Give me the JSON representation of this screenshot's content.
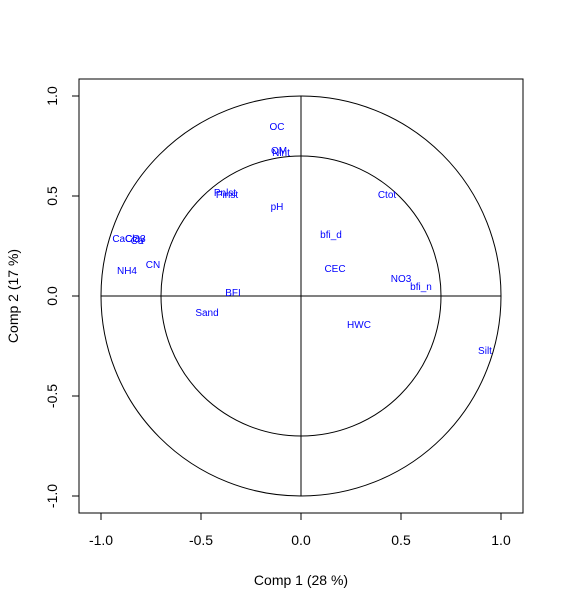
{
  "chart_data": {
    "type": "scatter",
    "title": "",
    "xlabel": "Comp 1 (28 %)",
    "ylabel": "Comp 2 (17 %)",
    "xlim": [
      -1.1,
      1.1
    ],
    "ylim": [
      -1.08,
      1.08
    ],
    "xticks": [
      -1.0,
      -0.5,
      0.0,
      0.5,
      1.0
    ],
    "xtick_labels": [
      "-1.0",
      "-0.5",
      "0.0",
      "0.5",
      "1.0"
    ],
    "yticks": [
      -1.0,
      -0.5,
      0.0,
      0.5,
      1.0
    ],
    "ytick_labels": [
      "-1.0",
      "-0.5",
      "0.0",
      "0.5",
      "1.0"
    ],
    "circles": [
      1.0,
      0.7
    ],
    "grid": false,
    "label_color": "#0000ff",
    "points": [
      {
        "label": "OC",
        "x": -0.12,
        "y": 0.85
      },
      {
        "label": "OM",
        "x": -0.11,
        "y": 0.73
      },
      {
        "label": "Nlnt",
        "x": -0.1,
        "y": 0.72
      },
      {
        "label": "Pnlst",
        "x": -0.38,
        "y": 0.52
      },
      {
        "label": "Pinst",
        "x": -0.37,
        "y": 0.51
      },
      {
        "label": "pH",
        "x": -0.12,
        "y": 0.45
      },
      {
        "label": "Ctot",
        "x": 0.43,
        "y": 0.51
      },
      {
        "label": "bfi_d",
        "x": 0.15,
        "y": 0.31
      },
      {
        "label": "CaCO3",
        "x": -0.86,
        "y": 0.29
      },
      {
        "label": "Clay",
        "x": -0.83,
        "y": 0.29
      },
      {
        "label": "Ca",
        "x": -0.82,
        "y": 0.28
      },
      {
        "label": "NH4",
        "x": -0.87,
        "y": 0.13
      },
      {
        "label": "CN",
        "x": -0.74,
        "y": 0.16
      },
      {
        "label": "CEC",
        "x": 0.17,
        "y": 0.14
      },
      {
        "label": "NO3",
        "x": 0.5,
        "y": 0.09
      },
      {
        "label": "bfi_n",
        "x": 0.6,
        "y": 0.05
      },
      {
        "label": "BFI",
        "x": -0.34,
        "y": 0.02
      },
      {
        "label": "Sand",
        "x": -0.47,
        "y": -0.08
      },
      {
        "label": "HWC",
        "x": 0.29,
        "y": -0.14
      },
      {
        "label": "Silt",
        "x": 0.92,
        "y": -0.27
      }
    ]
  }
}
